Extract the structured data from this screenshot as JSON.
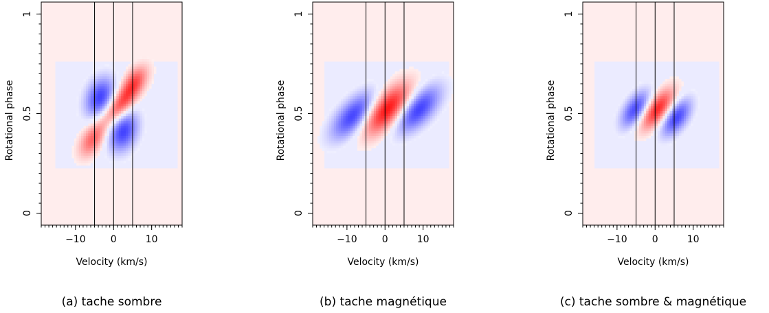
{
  "chart_data": [
    {
      "type": "heatmap",
      "caption": "(a) tache sombre",
      "xlabel": "Velocity (km/s)",
      "ylabel": "Rotational phase",
      "xlim": [
        -19,
        18
      ],
      "ylim": [
        -0.06,
        1.06
      ],
      "x_ticks": [
        -10,
        0,
        10
      ],
      "x_tick_labels": [
        "−10",
        "0",
        "10"
      ],
      "y_ticks": [
        0,
        0.5,
        1
      ],
      "y_tick_labels": [
        "0",
        "0.5",
        "1"
      ],
      "vertical_lines": [
        -5,
        0,
        5
      ],
      "colors": {
        "positive": "#ff0000",
        "negative": "#0000ff",
        "background": "#fff0f0"
      },
      "background_value": 0.07,
      "blobs": [
        {
          "v": 2.5,
          "phase": 0.41,
          "sigma_v": 2.8,
          "sigma_p": 0.07,
          "angle": 0.35,
          "amp": -0.75
        },
        {
          "v": -3.5,
          "phase": 0.58,
          "sigma_v": 2.8,
          "sigma_p": 0.07,
          "angle": 0.35,
          "amp": -0.75
        },
        {
          "v": -5.5,
          "phase": 0.37,
          "sigma_v": 2.5,
          "sigma_p": 0.055,
          "angle": 0.6,
          "amp": 0.6
        },
        {
          "v": 1.5,
          "phase": 0.54,
          "sigma_v": 3.2,
          "sigma_p": 0.05,
          "angle": 0.75,
          "amp": 0.75
        },
        {
          "v": 5.5,
          "phase": 0.66,
          "sigma_v": 2.5,
          "sigma_p": 0.05,
          "angle": 0.6,
          "amp": 0.6
        }
      ],
      "faint_band": {
        "v_min": -15.5,
        "v_max": 16.5,
        "phase_min": 0.22,
        "phase_max": 0.76,
        "value": -0.08
      }
    },
    {
      "type": "heatmap",
      "caption": "(b) tache magnétique",
      "xlabel": "Velocity (km/s)",
      "ylabel": "Rotational phase",
      "xlim": [
        -19,
        18
      ],
      "ylim": [
        -0.06,
        1.06
      ],
      "x_ticks": [
        -10,
        0,
        10
      ],
      "x_tick_labels": [
        "−10",
        "0",
        "10"
      ],
      "y_ticks": [
        0,
        0.5,
        1
      ],
      "y_tick_labels": [
        "0",
        "0.5",
        "1"
      ],
      "vertical_lines": [
        -5,
        0,
        5
      ],
      "colors": {
        "positive": "#ff0000",
        "negative": "#0000ff",
        "background": "#fff0f0"
      },
      "background_value": 0.07,
      "blobs": [
        {
          "v": -8.0,
          "phase": 0.49,
          "sigma_v": 4.2,
          "sigma_p": 0.065,
          "angle": 0.62,
          "amp": -0.8
        },
        {
          "v": 0.5,
          "phase": 0.52,
          "sigma_v": 4.5,
          "sigma_p": 0.07,
          "angle": 0.62,
          "amp": 1.0
        },
        {
          "v": 8.5,
          "phase": 0.52,
          "sigma_v": 4.2,
          "sigma_p": 0.065,
          "angle": 0.62,
          "amp": -0.8
        }
      ],
      "faint_band": {
        "v_min": -16,
        "v_max": 17,
        "phase_min": 0.22,
        "phase_max": 0.76,
        "value": -0.08
      }
    },
    {
      "type": "heatmap",
      "caption": "(c) tache sombre & magnétique",
      "xlabel": "Velocity (km/s)",
      "ylabel": "Rotational phase",
      "xlim": [
        -19,
        18
      ],
      "ylim": [
        -0.06,
        1.06
      ],
      "x_ticks": [
        -10,
        0,
        10
      ],
      "x_tick_labels": [
        "−10",
        "0",
        "10"
      ],
      "y_ticks": [
        0,
        0.5,
        1
      ],
      "y_tick_labels": [
        "0",
        "0.5",
        "1"
      ],
      "vertical_lines": [
        -5,
        0,
        5
      ],
      "colors": {
        "positive": "#ff0000",
        "negative": "#0000ff",
        "background": "#fff0f0"
      },
      "background_value": 0.07,
      "blobs": [
        {
          "v": -5.0,
          "phase": 0.52,
          "sigma_v": 2.8,
          "sigma_p": 0.055,
          "angle": 0.65,
          "amp": -0.75
        },
        {
          "v": 0.5,
          "phase": 0.52,
          "sigma_v": 3.2,
          "sigma_p": 0.055,
          "angle": 0.7,
          "amp": 0.9
        },
        {
          "v": 5.5,
          "phase": 0.48,
          "sigma_v": 2.8,
          "sigma_p": 0.055,
          "angle": 0.65,
          "amp": -0.75
        }
      ],
      "faint_band": {
        "v_min": -16,
        "v_max": 16.5,
        "phase_min": 0.22,
        "phase_max": 0.76,
        "value": -0.08
      }
    }
  ]
}
